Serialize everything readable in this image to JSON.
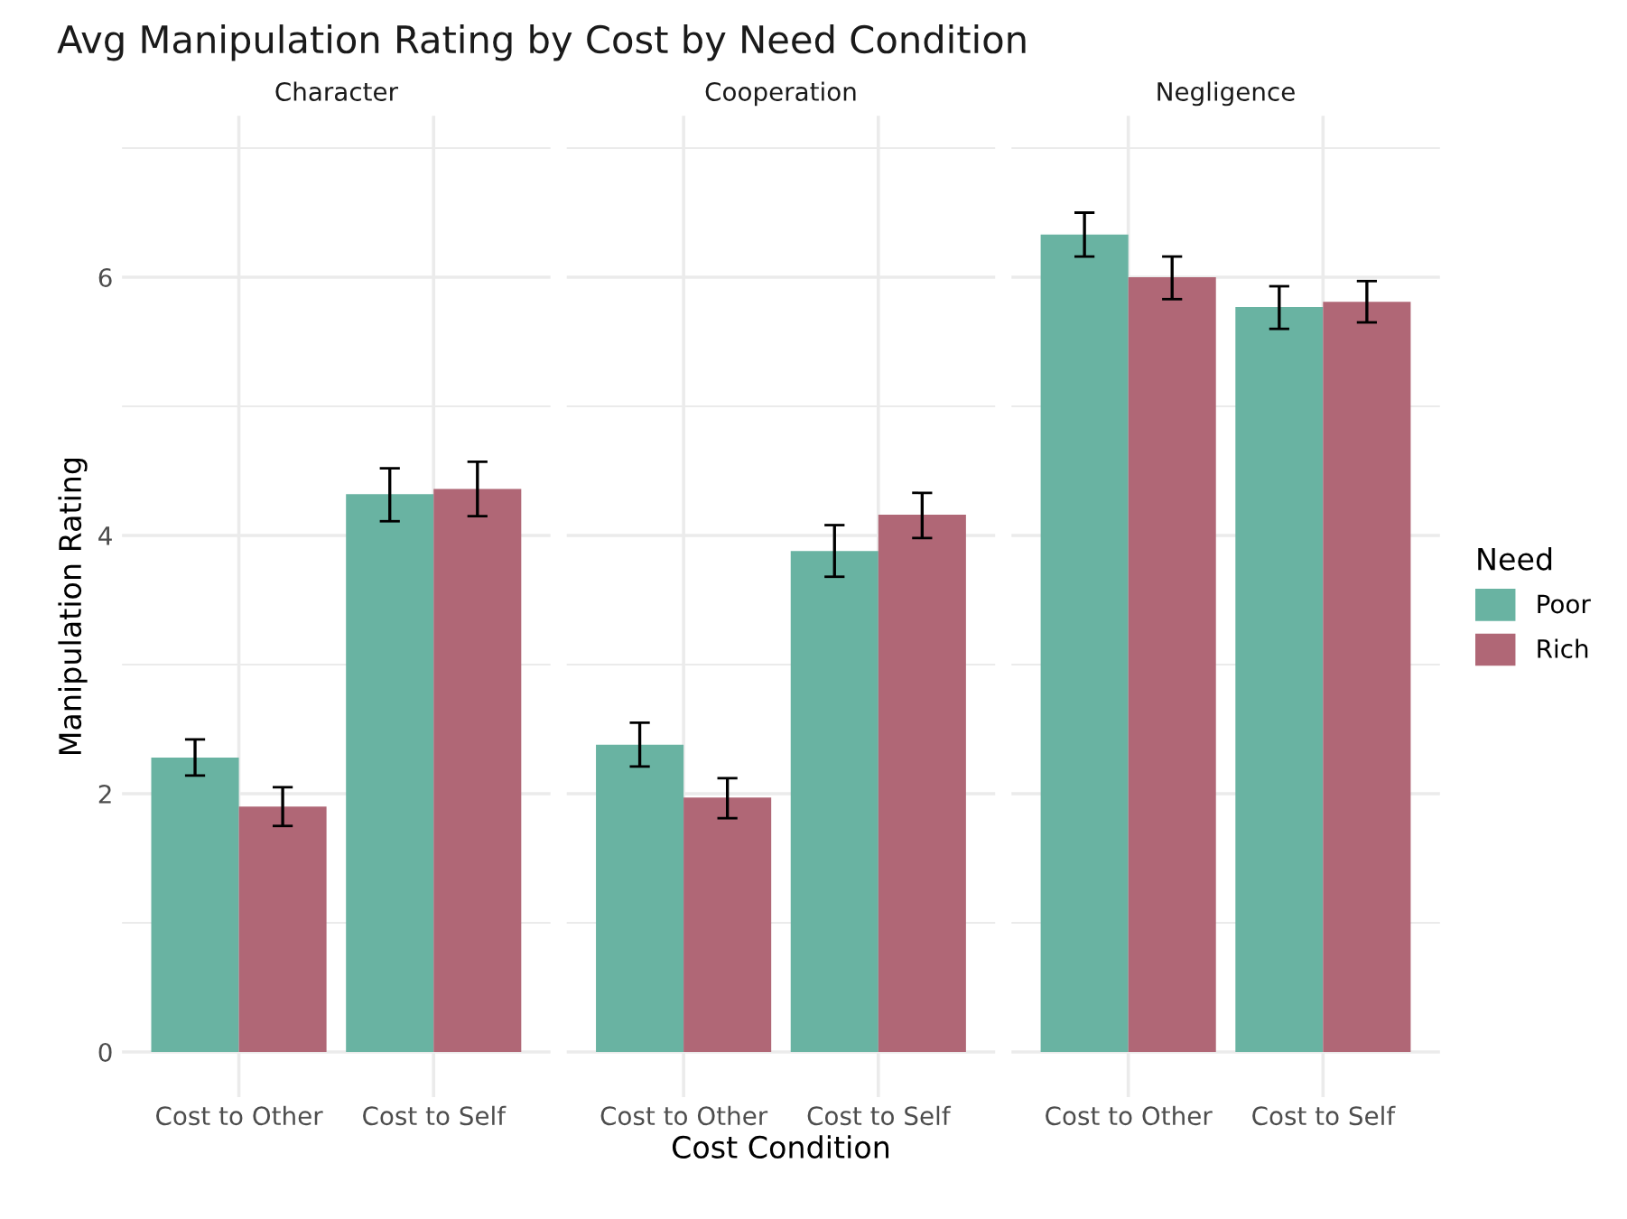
{
  "chart_data": [
    {
      "type": "bar",
      "title": "Avg Manipulation Rating by Cost by Need Condition",
      "subtitle": "Character",
      "ylabel": "Manipulation Rating",
      "categories": [
        "Cost to Other",
        "Cost to Self"
      ],
      "ylim": [
        -0.35,
        7.25
      ],
      "yticks": [
        0,
        {
          "value": 1,
          "label": null
        },
        2,
        {
          "value": 3,
          "label": null
        },
        4,
        {
          "value": 5,
          "label": null
        },
        6,
        {
          "value": 7,
          "label": null
        }
      ],
      "grid": true,
      "series": [
        {
          "color": "#69b3a2",
          "values": [
            2.28,
            4.32
          ],
          "errors": [
            [
              2.14,
              2.42
            ],
            [
              4.11,
              4.52
            ]
          ]
        },
        {
          "color": "#b06776",
          "values": [
            1.9,
            4.36
          ],
          "errors": [
            [
              1.75,
              2.05
            ],
            [
              4.15,
              4.57
            ]
          ]
        }
      ]
    },
    {
      "type": "bar",
      "subtitle": "Cooperation",
      "xlabel": "Cost Condition",
      "categories": [
        "Cost to Other",
        "Cost to Self"
      ],
      "ylim": [
        -0.35,
        7.25
      ],
      "yticks": [
        0,
        {
          "value": 1,
          "label": null
        },
        2,
        {
          "value": 3,
          "label": null
        },
        4,
        {
          "value": 5,
          "label": null
        },
        6,
        {
          "value": 7,
          "label": null
        }
      ],
      "grid": true,
      "tick_labels": "x",
      "series": [
        {
          "color": "#69b3a2",
          "values": [
            2.38,
            3.88
          ],
          "errors": [
            [
              2.21,
              2.55
            ],
            [
              3.68,
              4.08
            ]
          ]
        },
        {
          "color": "#b06776",
          "values": [
            1.97,
            4.16
          ],
          "errors": [
            [
              1.81,
              2.12
            ],
            [
              3.98,
              4.33
            ]
          ]
        }
      ]
    },
    {
      "type": "bar",
      "subtitle": "Negligence",
      "categories": [
        "Cost to Other",
        "Cost to Self"
      ],
      "ylim": [
        -0.35,
        7.25
      ],
      "yticks": [
        0,
        {
          "value": 1,
          "label": null
        },
        2,
        {
          "value": 3,
          "label": null
        },
        4,
        {
          "value": 5,
          "label": null
        },
        6,
        {
          "value": 7,
          "label": null
        }
      ],
      "grid": true,
      "tick_labels": "x",
      "legend": "right",
      "legend_title": "Need",
      "series": [
        {
          "name": "Poor",
          "color": "#69b3a2",
          "values": [
            6.33,
            5.77
          ],
          "errors": [
            [
              6.16,
              6.5
            ],
            [
              5.6,
              5.93
            ]
          ]
        },
        {
          "name": "Rich",
          "color": "#b06776",
          "values": [
            6.0,
            5.81
          ],
          "errors": [
            [
              5.83,
              6.16
            ],
            [
              5.65,
              5.97
            ]
          ]
        }
      ]
    }
  ]
}
